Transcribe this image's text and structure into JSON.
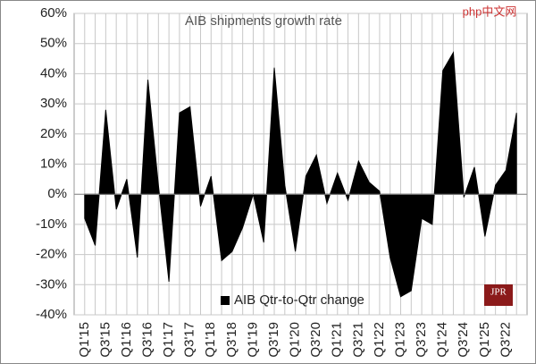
{
  "chart_data": {
    "type": "area",
    "title": "AIB shipments growth rate",
    "categories": [
      "Q1'15",
      null,
      "Q3'15",
      null,
      "Q1'16",
      null,
      "Q3'16",
      null,
      "Q1'17",
      null,
      "Q3'17",
      null,
      "Q1'18",
      null,
      "Q3'18",
      null,
      "Q1'19",
      null,
      "Q3'19",
      null,
      "Q1'20",
      null,
      "Q3'20",
      null,
      "Q1'21",
      null,
      "Q3'21",
      null,
      "Q1'22",
      null,
      "Q1'23",
      null,
      "Q3'23",
      null,
      "Q1'24",
      null,
      "Q3'24",
      null,
      "Q1'25",
      null,
      "Q3'22",
      null
    ],
    "series": [
      {
        "name": "AIB Qtr-to-Qtr change",
        "color": "#000000",
        "values": [
          -8,
          -17,
          28,
          -5,
          5,
          -21,
          38,
          3,
          -29,
          27,
          29,
          -4,
          6,
          -22,
          -19,
          -11,
          0,
          -16,
          42,
          3,
          -19,
          6,
          13,
          -3,
          7,
          -2,
          11,
          4,
          1,
          -21,
          -34,
          -32,
          -8,
          -10,
          41,
          47,
          -1,
          9,
          -14,
          3,
          8,
          27
        ]
      }
    ],
    "ylim": [
      -40,
      60
    ],
    "yticks": [
      {
        "value": -40,
        "label": "-40%"
      },
      {
        "value": -30,
        "label": "-30%"
      },
      {
        "value": -20,
        "label": "-20%"
      },
      {
        "value": -10,
        "label": "-10%"
      },
      {
        "value": 0,
        "label": "0%"
      },
      {
        "value": 10,
        "label": "10%"
      },
      {
        "value": 20,
        "label": "20%"
      },
      {
        "value": 30,
        "label": "30%"
      },
      {
        "value": 40,
        "label": "40%"
      },
      {
        "value": 50,
        "label": "50%"
      },
      {
        "value": 60,
        "label": "60%"
      }
    ],
    "grid": true,
    "legend": "bottom",
    "logo": "JPR"
  },
  "watermark": "php中文网"
}
